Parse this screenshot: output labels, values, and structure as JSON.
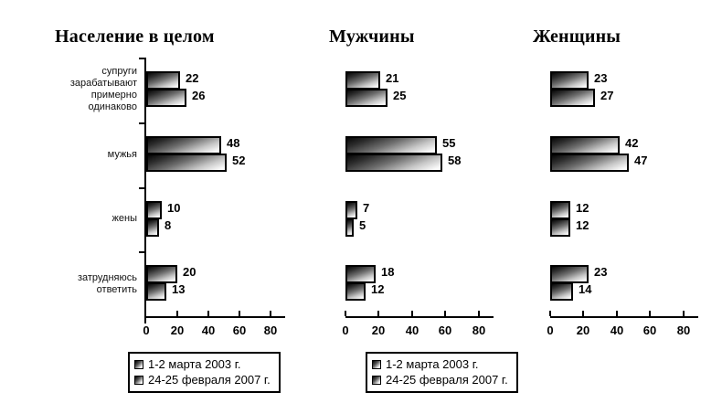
{
  "chart_data": {
    "type": "bar",
    "orientation": "horizontal",
    "categories": [
      "супруги зарабатывают примерно одинаково",
      "мужья",
      "жены",
      "затрудняюсь ответить"
    ],
    "xlim": [
      0,
      80
    ],
    "xticks": [
      0,
      20,
      40,
      60,
      80
    ],
    "grid": false,
    "legend_position": "below",
    "panels": [
      {
        "title": "Население в целом",
        "show_category_labels": true,
        "show_legend": true,
        "series": [
          {
            "name": "1-2 марта 2003 г.",
            "values": [
              22,
              48,
              10,
              20
            ]
          },
          {
            "name": "24-25 февраля 2007 г.",
            "values": [
              26,
              52,
              8,
              13
            ]
          }
        ]
      },
      {
        "title": "Мужчины",
        "show_category_labels": false,
        "show_legend": true,
        "series": [
          {
            "name": "1-2 марта 2003 г.",
            "values": [
              21,
              55,
              7,
              18
            ]
          },
          {
            "name": "24-25 февраля 2007 г.",
            "values": [
              25,
              58,
              5,
              12
            ]
          }
        ]
      },
      {
        "title": "Женщины",
        "show_category_labels": false,
        "show_legend": false,
        "series": [
          {
            "name": "1-2 марта 2003 г.",
            "values": [
              23,
              42,
              12,
              23
            ]
          },
          {
            "name": "24-25 февраля 2007 г.",
            "values": [
              27,
              47,
              12,
              14
            ]
          }
        ]
      }
    ],
    "colors": {
      "bar_border": "#000000",
      "bar_gradient_dark": "#0a0a0a",
      "bar_gradient_light": "#ffffff",
      "text": "#000000",
      "background": "#ffffff"
    }
  }
}
